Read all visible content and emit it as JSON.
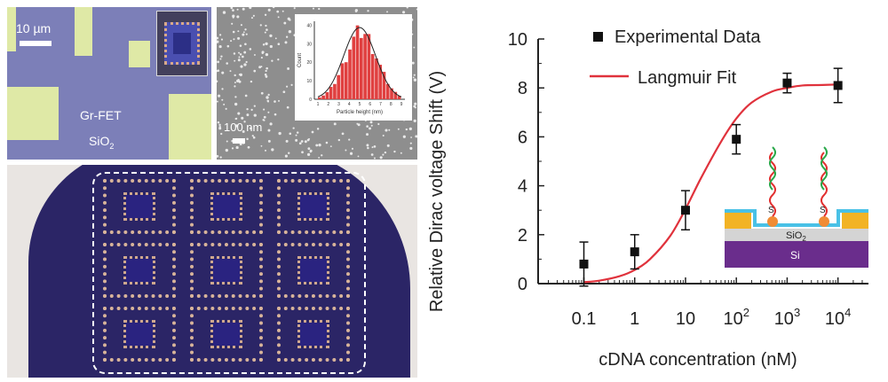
{
  "panels": {
    "optical": {
      "scale_label": "10 µm",
      "device_label": "Gr-FET",
      "substrate_label": "SiO",
      "substrate_sub": "2"
    },
    "sem": {
      "scale_label": "100 nm",
      "inset": {
        "ylabel": "Count",
        "xlabel": "Particle height (nm)",
        "yticks": [
          "0",
          "10",
          "20",
          "30",
          "40"
        ],
        "xticks": [
          "1",
          "2",
          "3",
          "4",
          "5",
          "6",
          "7",
          "8",
          "9"
        ]
      }
    },
    "schematic": {
      "sio2_label": "SiO",
      "sio2_sub": "2",
      "si_label": "Si",
      "s_label": "S"
    }
  },
  "chart_data": {
    "type": "scatter",
    "xscale": "log",
    "xlabel": "cDNA concentration (nM)",
    "ylabel": "Relative Dirac voltage Shift (V)",
    "ylim": [
      0,
      10
    ],
    "xlim_log10": [
      -1.9,
      4.6
    ],
    "yticks": [
      0,
      2,
      4,
      6,
      8,
      10
    ],
    "xticks": [
      {
        "log": -1,
        "base": "0.1",
        "exp": ""
      },
      {
        "log": 0,
        "base": "1",
        "exp": ""
      },
      {
        "log": 1,
        "base": "10",
        "exp": ""
      },
      {
        "log": 2,
        "base": "10",
        "exp": "2"
      },
      {
        "log": 3,
        "base": "10",
        "exp": "3"
      },
      {
        "log": 4,
        "base": "10",
        "exp": "4"
      }
    ],
    "series": [
      {
        "name": "Experimental Data",
        "color": "#111111",
        "x": [
          0.1,
          1,
          10,
          100,
          1000,
          10000
        ],
        "y": [
          0.8,
          1.3,
          3.0,
          5.9,
          8.2,
          8.1
        ],
        "err": [
          0.9,
          0.7,
          0.8,
          0.6,
          0.4,
          0.7
        ]
      },
      {
        "name": "Langmuir Fit",
        "color": "#e0323c",
        "x": [
          0.1,
          0.2,
          0.5,
          1,
          2,
          5,
          10,
          20,
          50,
          100,
          200,
          500,
          1000,
          2000,
          5000,
          10000
        ],
        "y": [
          0.06,
          0.12,
          0.3,
          0.56,
          1.0,
          1.95,
          3.05,
          4.3,
          5.8,
          6.75,
          7.4,
          7.85,
          8.0,
          8.1,
          8.12,
          8.14
        ]
      }
    ],
    "legend_position": "top-left"
  }
}
